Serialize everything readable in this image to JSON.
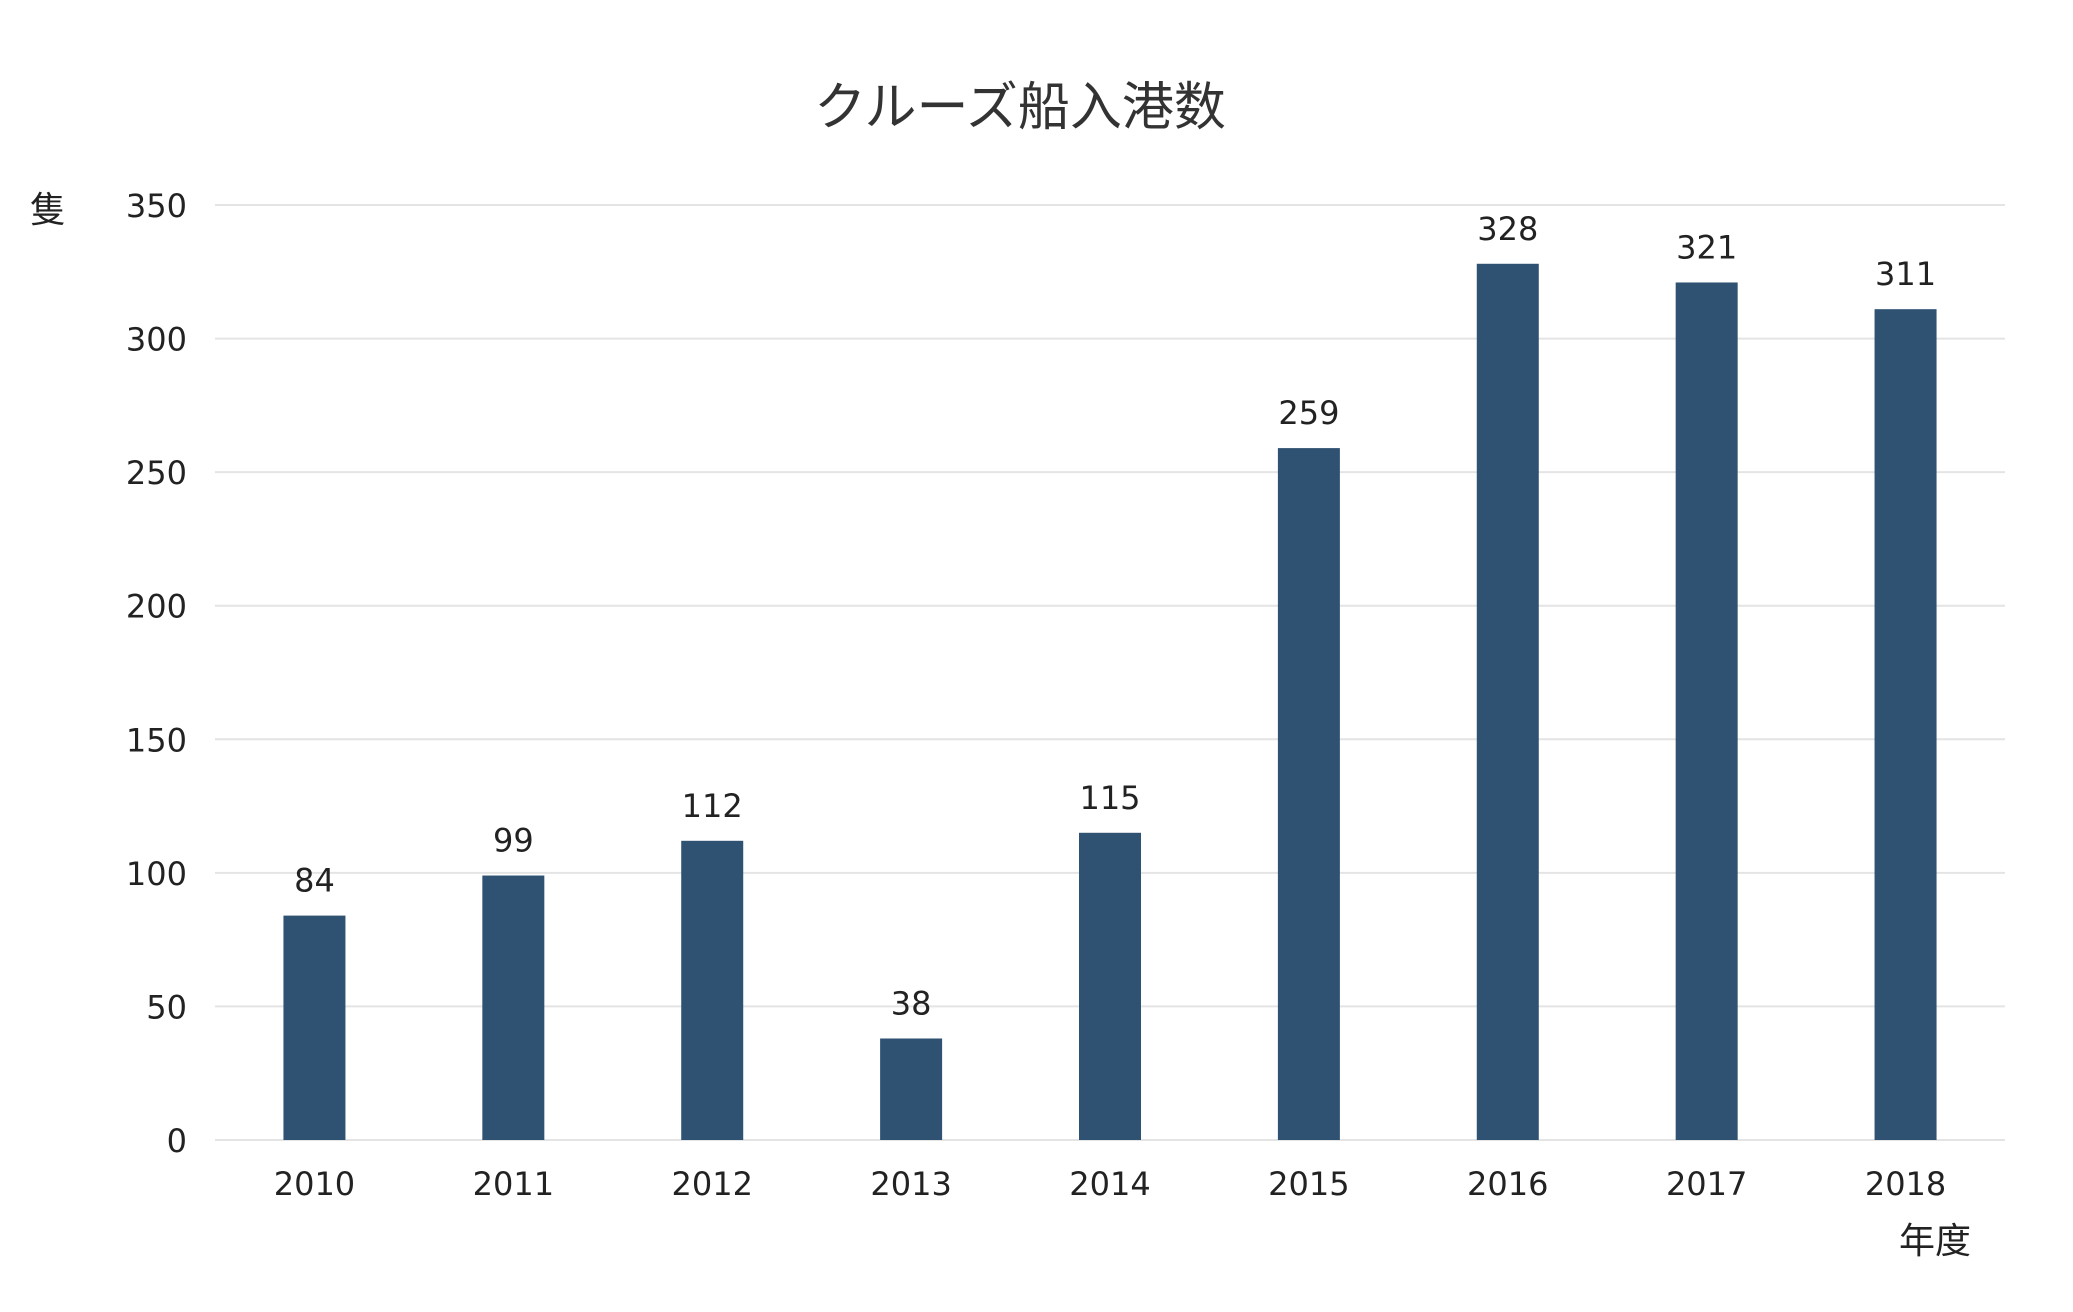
{
  "chart_data": {
    "type": "bar",
    "title": "クルーズ船入港数",
    "ylabel": "隻",
    "xlabel": "年度",
    "categories": [
      "2010",
      "2011",
      "2012",
      "2013",
      "2014",
      "2015",
      "2016",
      "2017",
      "2018"
    ],
    "series": [
      {
        "values": [
          84,
          99,
          112,
          38,
          115,
          259,
          328,
          321,
          311
        ]
      }
    ],
    "ylim": [
      0,
      350
    ],
    "yticks": [
      0,
      50,
      100,
      150,
      200,
      250,
      300,
      350
    ],
    "grid": true,
    "data_labels": true,
    "colors": {
      "bar": "#2f5273",
      "grid": "#e4e4e4",
      "text": "#222222",
      "title": "#333333"
    }
  }
}
